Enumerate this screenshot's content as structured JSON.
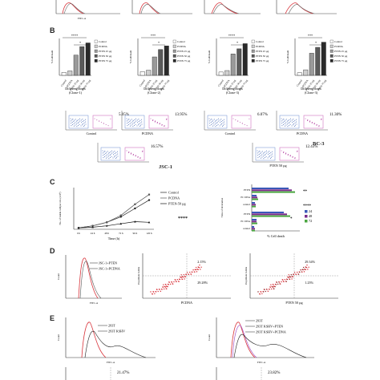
{
  "panels": {
    "B": {
      "label": "B",
      "legend_common": [
        "Control",
        "PCDNA",
        "PTEN 25 µg",
        "PTEN 50 µg",
        "PTEN 75 µg"
      ],
      "legend_first": [
        "Control",
        "PCDNA",
        "PTEN 25 µg",
        "PTEN 50 µg",
        "PTEN 75 µg"
      ],
      "ylabel": "% Cell death",
      "charts": [
        {
          "xlabel": "Different doses",
          "sub": "(Clone-1)",
          "sig_top": "****",
          "sig_bottom": "*",
          "values": [
            8,
            12,
            55,
            78,
            88
          ]
        },
        {
          "xlabel": "Different doses",
          "sub": "(Clone-2)",
          "sig_top": "***",
          "sig_bottom": "*",
          "values": [
            10,
            14,
            50,
            70,
            80
          ]
        },
        {
          "xlabel": "Different doses",
          "sub": "(Clone-3)",
          "sig_top": "****",
          "sig_bottom": "*",
          "values": [
            9,
            13,
            58,
            72,
            86
          ]
        },
        {
          "xlabel": "Different doses",
          "sub": "(Clone-3)",
          "sig_top": "***",
          "sig_bottom": "*",
          "values": [
            7,
            15,
            60,
            76,
            90
          ]
        }
      ],
      "flow": {
        "pcts": [
          "5.05%",
          "13.95%",
          "6.07%",
          "11.30%",
          "16.57%",
          "12.43%"
        ],
        "xlabels": [
          "Control",
          "PCDNA",
          "Control",
          "PCDNA",
          "",
          "PTEN 50 µg"
        ],
        "group_left": "JSC-1",
        "group_right": "BC-3"
      }
    },
    "C": {
      "label": "C",
      "line_chart": {
        "type": "line",
        "x": [
          "0 h",
          "24 h",
          "48 h",
          "72 h",
          "96 h",
          "120 h"
        ],
        "xlabel": "Time (h)",
        "ylabel": "No. of viable cell per mL (x10⁶)",
        "series": [
          {
            "name": "Control",
            "values": [
              0.2,
              0.5,
              1.0,
              1.8,
              3.0,
              4.2
            ]
          },
          {
            "name": "PCDNA",
            "values": [
              0.2,
              0.5,
              1.0,
              2.0,
              3.6,
              5.0
            ]
          },
          {
            "name": "PTEN-50 µg",
            "values": [
              0.2,
              0.3,
              0.5,
              0.8,
              1.1,
              1.0
            ]
          }
        ],
        "sig": "****"
      },
      "bar_chart": {
        "type": "bar",
        "ylabel": "Time of Incubation",
        "xlabel": "% Cell death",
        "groups": [
          "PTEN",
          "PC DNA",
          "control",
          "PTEN",
          "PC DNA",
          "control"
        ],
        "legend": [
          "24",
          "48",
          "72"
        ],
        "sig": [
          "**",
          "****",
          "*"
        ]
      }
    },
    "D": {
      "label": "D",
      "hist_legend": [
        "JSC-1+PTEN",
        "JSC-1+PCDNA"
      ],
      "hist_xlabel": "FITC-A",
      "hist_ylabel": "Count",
      "scatter1": {
        "ul": "2.15%",
        "lr": "29.28%",
        "xlabel": "PCDNA",
        "ylabel": "Propidium Iodide"
      },
      "scatter2": {
        "ul": "29.34%",
        "lr": "1.23%",
        "xlabel": "PTEN 50 µg",
        "ylabel": "Propidium Iodide"
      }
    },
    "E": {
      "label": "E",
      "hist1_legend": [
        "293T",
        "293T KSHV"
      ],
      "hist2_legend": [
        "293T",
        "293T KSHV+PTEN",
        "293T KSHV+PCDNA"
      ],
      "hist_xlabel": "FITC-A",
      "hist_ylabel": "Count",
      "bottom_pcts": [
        "21.47%",
        "23.82%"
      ]
    },
    "A_top": {
      "xlabel": "FITC-A"
    }
  },
  "colors": {
    "red": "#d8333a",
    "gray": "#8a8a8a",
    "dark": "#2a2a2a",
    "green": "#4aa640",
    "blue": "#3a58b8",
    "purple": "#7a2a8a",
    "olive": "#b6b33a"
  }
}
